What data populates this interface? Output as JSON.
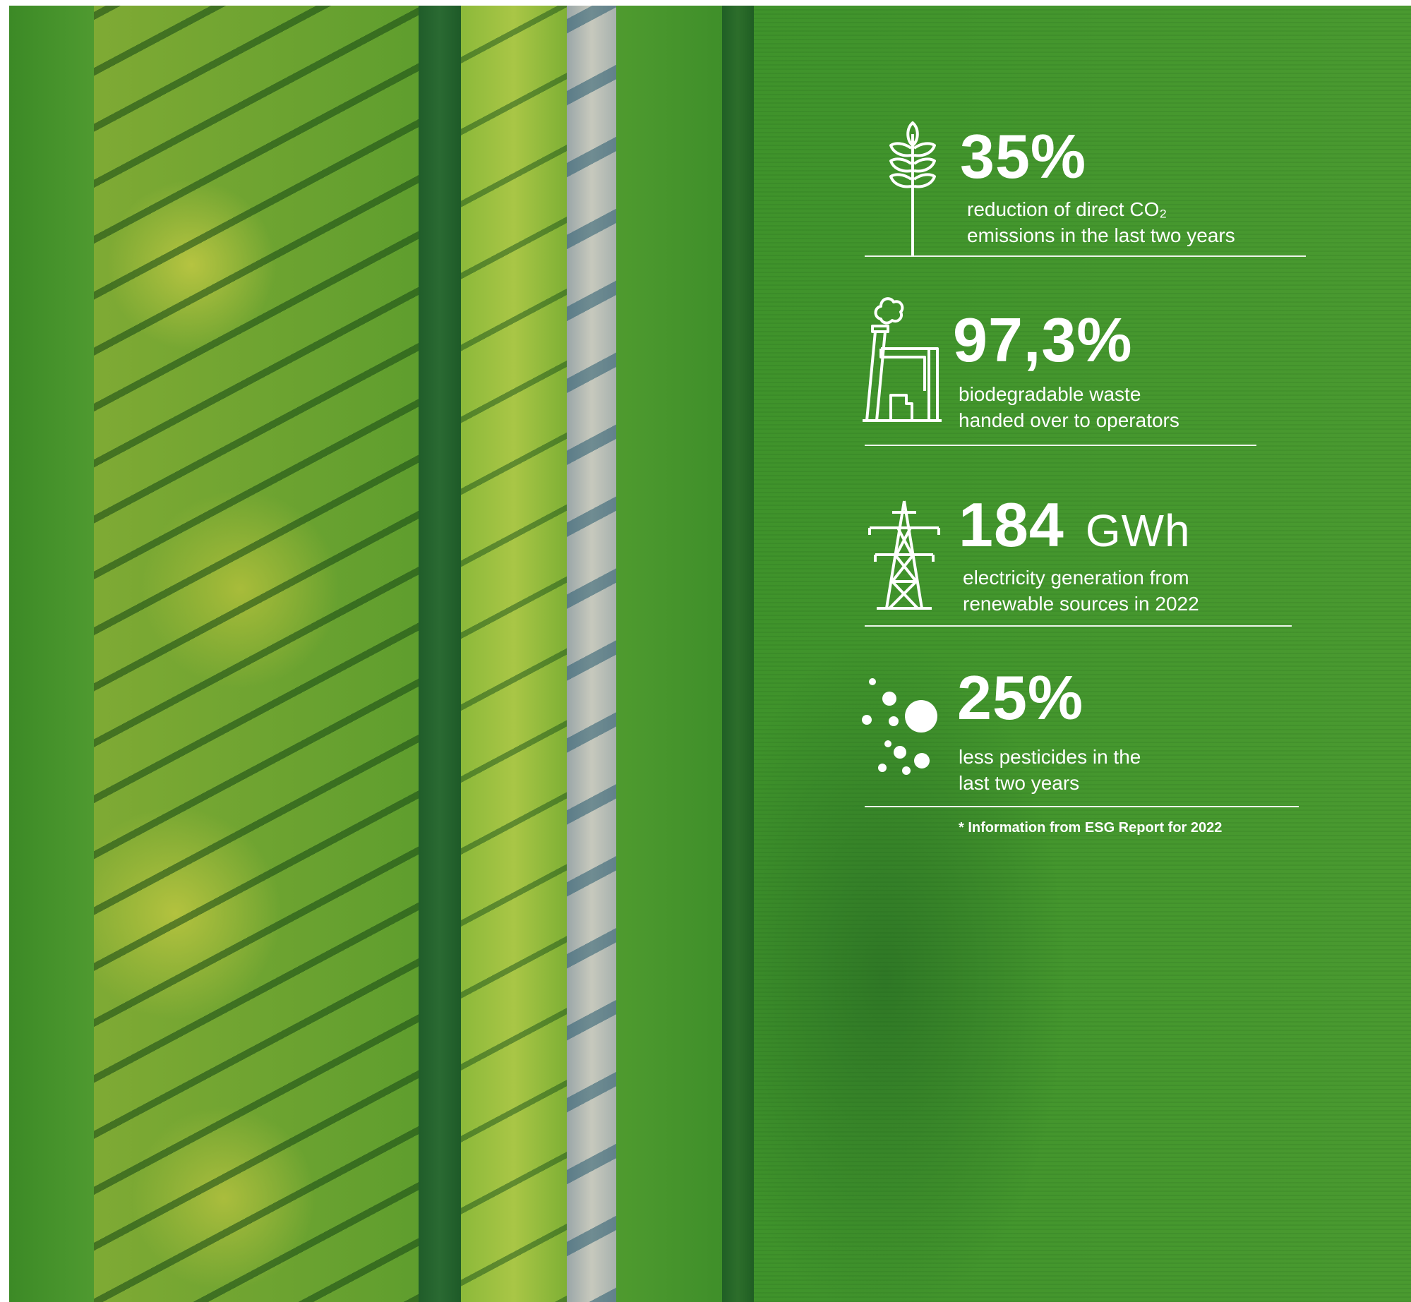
{
  "stats": [
    {
      "value": "35%",
      "unit": "",
      "desc_line1": "reduction of direct CO₂",
      "desc_line2": "emissions in the last two years",
      "icon": "wheat-icon"
    },
    {
      "value": "97,3%",
      "unit": "",
      "desc_line1": "biodegradable waste",
      "desc_line2": "handed over to operators",
      "icon": "factory-icon"
    },
    {
      "value": "184",
      "unit": "GWh",
      "desc_line1": "electricity generation from",
      "desc_line2": "renewable sources in 2022",
      "icon": "power-tower-icon"
    },
    {
      "value": "25%",
      "unit": "",
      "desc_line1": "less pesticides in the",
      "desc_line2": "last two years",
      "icon": "particles-icon"
    }
  ],
  "footnote": "* Information from ESG Report for 2022",
  "colors": {
    "text": "#ffffff",
    "field_green": "#449630"
  }
}
